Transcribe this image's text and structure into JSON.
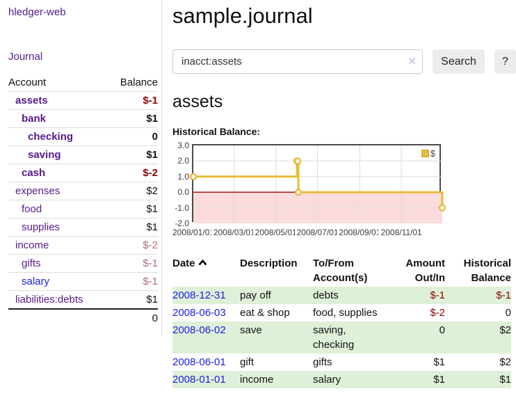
{
  "app": {
    "title": "hledger-web"
  },
  "sidebar": {
    "journal_link": "Journal",
    "table": {
      "headers": [
        "Account",
        "Balance"
      ],
      "rows": [
        {
          "name": "assets",
          "level": 1,
          "bold": true,
          "name_style": "purple",
          "balance": "$-1",
          "balance_style": "neg"
        },
        {
          "name": "bank",
          "level": 2,
          "bold": true,
          "name_style": "purple",
          "balance": "$1",
          "balance_style": "plain"
        },
        {
          "name": "checking",
          "level": 3,
          "bold": true,
          "name_style": "purple",
          "balance": "0",
          "balance_style": "plain"
        },
        {
          "name": "saving",
          "level": 3,
          "bold": true,
          "name_style": "purple",
          "balance": "$1",
          "balance_style": "plain"
        },
        {
          "name": "cash",
          "level": 2,
          "bold": true,
          "name_style": "purple",
          "balance": "$-2",
          "balance_style": "neg"
        },
        {
          "name": "expenses",
          "level": 1,
          "bold": false,
          "name_style": "purple",
          "balance": "$2",
          "balance_style": "plain"
        },
        {
          "name": "food",
          "level": 2,
          "bold": false,
          "name_style": "purple",
          "balance": "$1",
          "balance_style": "plain"
        },
        {
          "name": "supplies",
          "level": 2,
          "bold": false,
          "name_style": "purple",
          "balance": "$1",
          "balance_style": "plain"
        },
        {
          "name": "income",
          "level": 1,
          "bold": false,
          "name_style": "purple",
          "balance": "$-2",
          "balance_style": "negmuted"
        },
        {
          "name": "gifts",
          "level": 2,
          "bold": false,
          "name_style": "purple",
          "balance": "$-1",
          "balance_style": "negmuted"
        },
        {
          "name": "salary",
          "level": 2,
          "bold": false,
          "name_style": "blue",
          "balance": "$-1",
          "balance_style": "negmuted"
        },
        {
          "name": "liabilities:debts",
          "level": 1,
          "bold": false,
          "name_style": "purple",
          "balance": "$1",
          "balance_style": "plain"
        }
      ],
      "total": "0"
    }
  },
  "header": {
    "title": "sample.journal"
  },
  "search": {
    "value": "inacct:assets",
    "clear_icon": "✕",
    "button_label": "Search",
    "help_label": "?"
  },
  "account_page": {
    "heading": "assets",
    "chart_label": "Historical Balance:"
  },
  "chart_data": {
    "type": "line",
    "step": true,
    "title": "Historical Balance:",
    "x_range": [
      "2008-01-01",
      "2008-12-31"
    ],
    "ylim": [
      -2,
      3
    ],
    "y_ticks": [
      "3.0",
      "2.0",
      "1.0",
      "0.0",
      "-1.0",
      "-2.0"
    ],
    "x_ticks": [
      {
        "date": "2008-01-01",
        "label": "2008/01/01"
      },
      {
        "date": "2008-03-01",
        "label": "2008/03/01"
      },
      {
        "date": "2008-05-01",
        "label": "2008/05/01"
      },
      {
        "date": "2008-07-01",
        "label": "2008/07/01"
      },
      {
        "date": "2008-09-01",
        "label": "2008/09/01"
      },
      {
        "date": "2008-11-01",
        "label": "2008/11/01"
      }
    ],
    "legend": [
      {
        "label": "$",
        "color": "#e8bb3a"
      }
    ],
    "series": [
      {
        "name": "$",
        "color": "#e8bb3a",
        "points": [
          {
            "x": "2008-01-01",
            "y": 1
          },
          {
            "x": "2008-06-01",
            "y": 2
          },
          {
            "x": "2008-06-02",
            "y": 2
          },
          {
            "x": "2008-06-03",
            "y": 0
          },
          {
            "x": "2008-12-31",
            "y": -1
          }
        ]
      }
    ],
    "grid": {
      "on": true,
      "negative_fill": "#fbdbdb",
      "zero_line_color": "#a80000",
      "border_color": "#4a4a4a",
      "grid_color": "#dcdcdc",
      "legend_position": "top-right"
    }
  },
  "transactions": {
    "headers": [
      "Date",
      "Description",
      "To/From Account(s)",
      "Amount Out/In",
      "Historical Balance"
    ],
    "rows": [
      {
        "date": "2008-12-31",
        "description": "pay off",
        "accounts": "debts",
        "amount": "$-1",
        "balance": "$-1"
      },
      {
        "date": "2008-06-03",
        "description": "eat & shop",
        "accounts": "food, supplies",
        "amount": "$-2",
        "balance": "0"
      },
      {
        "date": "2008-06-02",
        "description": "save",
        "accounts": "saving, checking",
        "amount": "0",
        "balance": "$2"
      },
      {
        "date": "2008-06-01",
        "description": "gift",
        "accounts": "gifts",
        "amount": "$1",
        "balance": "$2"
      },
      {
        "date": "2008-01-01",
        "description": "income",
        "accounts": "salary",
        "amount": "$1",
        "balance": "$1"
      }
    ]
  },
  "colors": {
    "link_purple": "#551a8b",
    "link_blue": "#1a1ae6",
    "negative": "#8b0000",
    "negative_muted": "#b56a76",
    "row_stripe_green": "#dff0d8",
    "chart_gold": "#e8bb3a"
  }
}
